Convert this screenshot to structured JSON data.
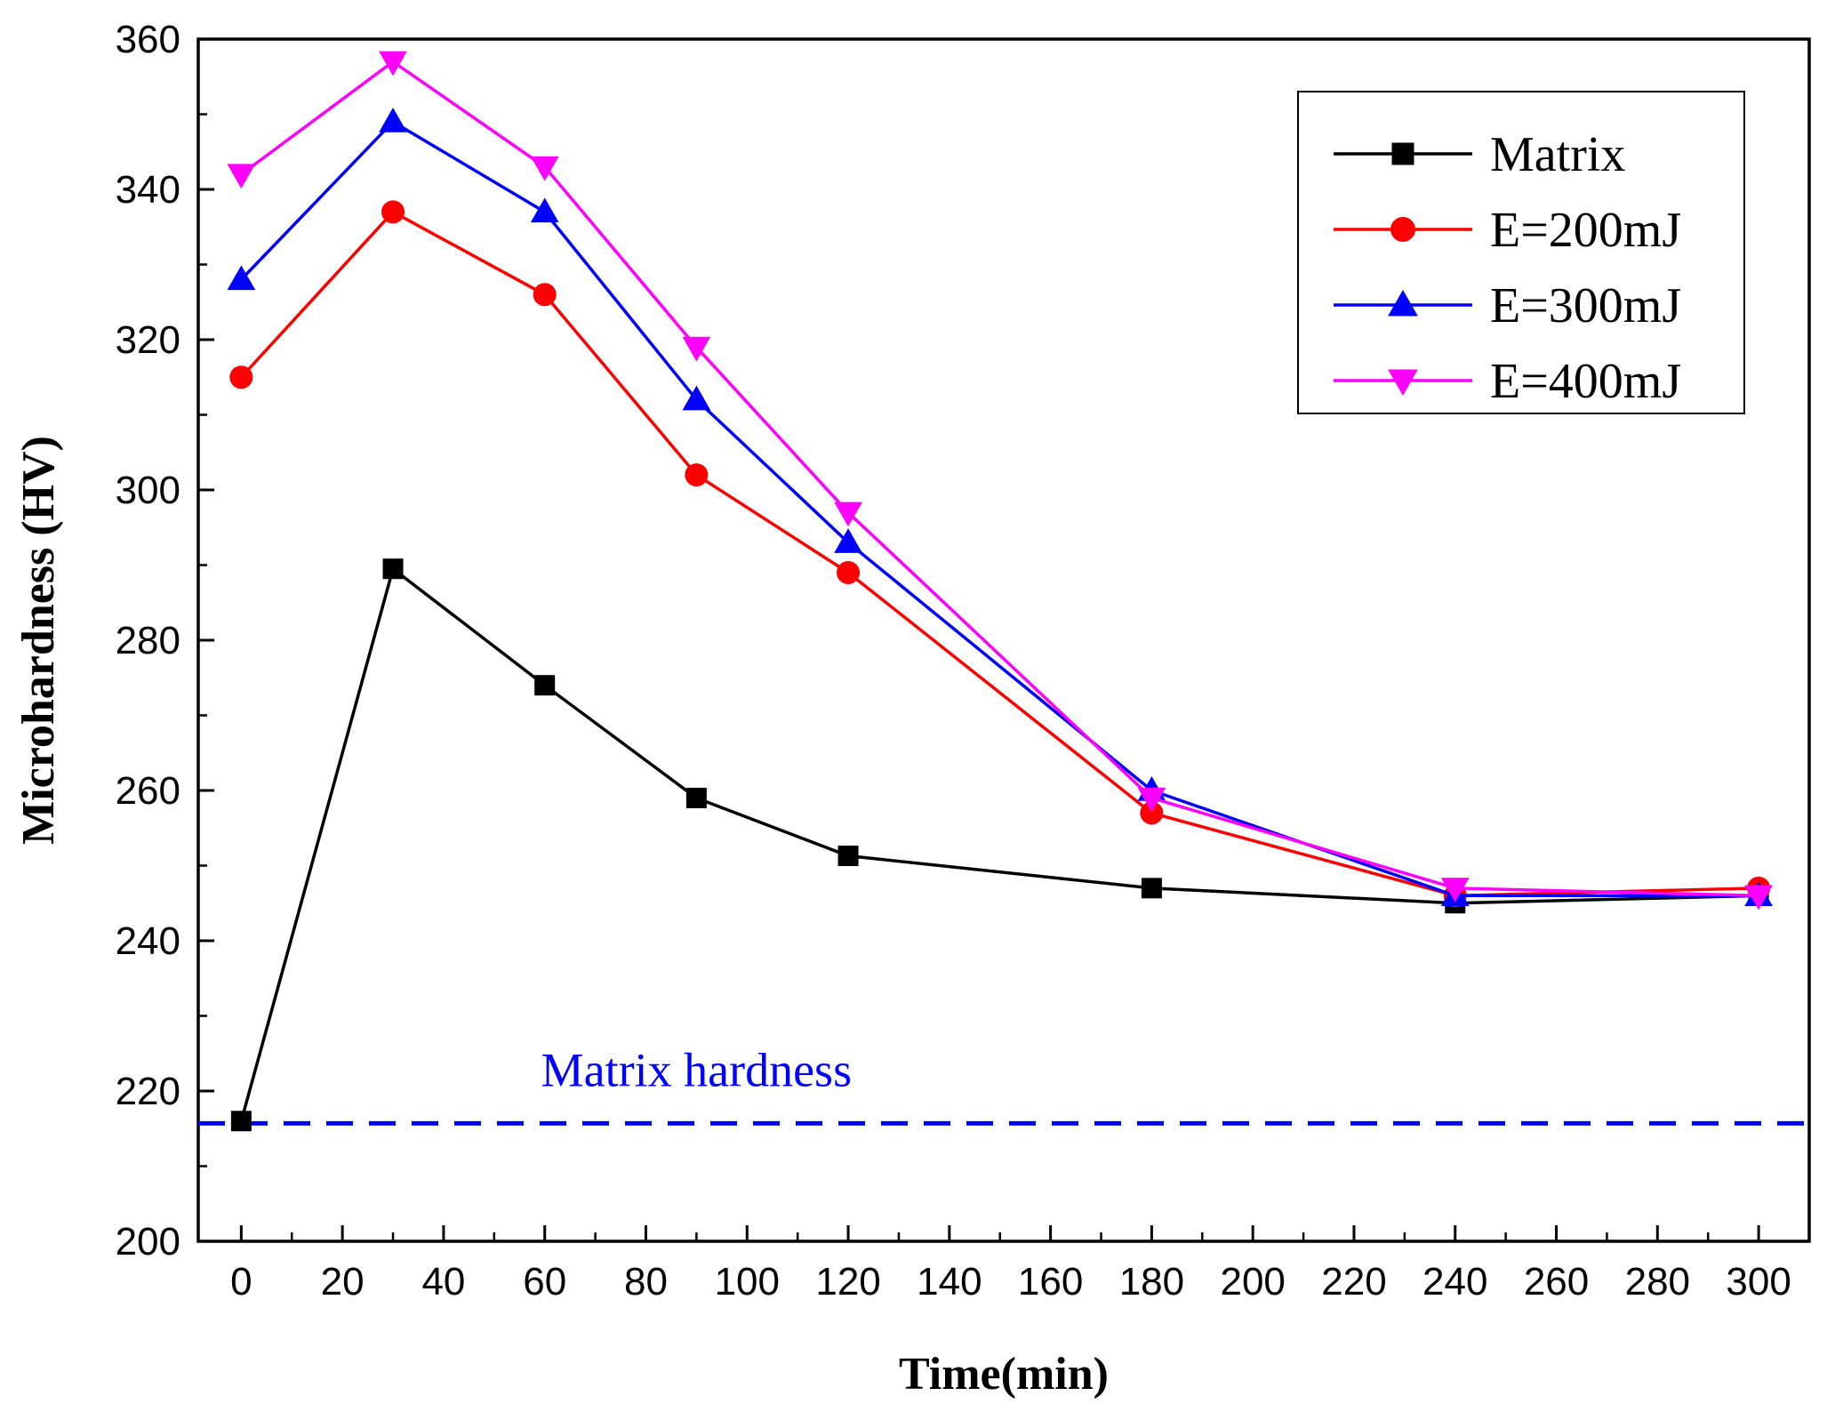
{
  "chart_data": {
    "type": "line",
    "title": "",
    "xlabel": "Time(min)",
    "ylabel": "Microhardness (HV)",
    "xlim": [
      -8.5,
      310
    ],
    "ylim": [
      200,
      360
    ],
    "xticks": [
      0,
      20,
      40,
      60,
      80,
      100,
      120,
      140,
      160,
      180,
      200,
      220,
      240,
      260,
      280,
      300
    ],
    "yticks": [
      200,
      220,
      240,
      260,
      280,
      300,
      320,
      340,
      360
    ],
    "x": [
      0,
      30,
      60,
      90,
      120,
      180,
      240,
      300
    ],
    "series": [
      {
        "name": "Matrix",
        "color": "#000000",
        "marker": "square",
        "values": [
          216,
          289.5,
          274,
          259,
          251.3,
          247,
          245,
          246
        ]
      },
      {
        "name": "E=200mJ",
        "color": "#ff0000",
        "marker": "circle",
        "values": [
          315,
          337,
          326,
          302,
          289,
          257,
          246,
          247
        ]
      },
      {
        "name": "E=300mJ",
        "color": "#0000ff",
        "marker": "triangle-up",
        "values": [
          328,
          349,
          337,
          312,
          293,
          260,
          246,
          246
        ]
      },
      {
        "name": "E=400mJ",
        "color": "#ff00ff",
        "marker": "triangle-down",
        "values": [
          342,
          357,
          343,
          319,
          297,
          259,
          247,
          246
        ]
      }
    ],
    "reference_line": {
      "label": "Matrix hardness",
      "value": 215.7,
      "color": "#0000ff",
      "style": "dashed"
    },
    "legend_position": "top-right",
    "grid": false
  }
}
